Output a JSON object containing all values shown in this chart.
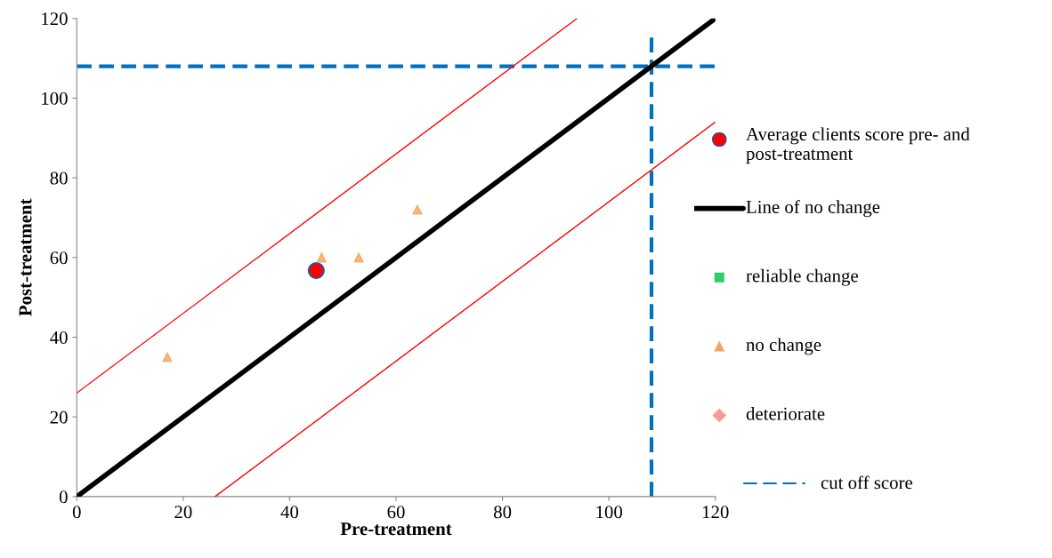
{
  "chart_data": {
    "type": "scatter",
    "xlabel": "Pre-treatment",
    "ylabel": "Post-treatment",
    "xlim": [
      0,
      120
    ],
    "ylim": [
      0,
      120
    ],
    "xticks": [
      0,
      20,
      40,
      60,
      80,
      100,
      120
    ],
    "yticks": [
      0,
      20,
      40,
      60,
      80,
      100,
      120
    ],
    "grid": false,
    "legend": "right",
    "series": [
      {
        "name": "Average clients score pre- and post-treatment",
        "marker": "circle",
        "color": "#ff0000",
        "x": [
          45
        ],
        "values": [
          56.7
        ]
      },
      {
        "name": "Line of no change",
        "type": "line",
        "marker": "none",
        "color": "#000000",
        "x": [
          0,
          120
        ],
        "values": [
          0,
          120
        ]
      },
      {
        "name": "reliable change",
        "marker": "square",
        "color": "#33cc66"
      },
      {
        "name": "no change",
        "marker": "triangle",
        "color": "#f4a460",
        "x": [
          17,
          46,
          53,
          64
        ],
        "values": [
          35,
          60,
          60,
          72
        ]
      },
      {
        "name": "deteriorate",
        "marker": "diamond",
        "color": "#ff9999"
      },
      {
        "type": "line",
        "marker": "none",
        "color": "#ff0000",
        "x": [
          0,
          94
        ],
        "values": [
          26,
          120
        ]
      },
      {
        "type": "line",
        "marker": "none",
        "color": "#ff0000",
        "x": [
          26,
          120
        ],
        "values": [
          0,
          94
        ]
      }
    ],
    "ref_lines": [
      {
        "axis": "y",
        "value": 108,
        "color": "#0070c0",
        "line_style": "dashed",
        "label": "cut off score"
      },
      {
        "axis": "x",
        "value": 108,
        "color": "#0070c0",
        "line_style": "dashed"
      }
    ]
  }
}
